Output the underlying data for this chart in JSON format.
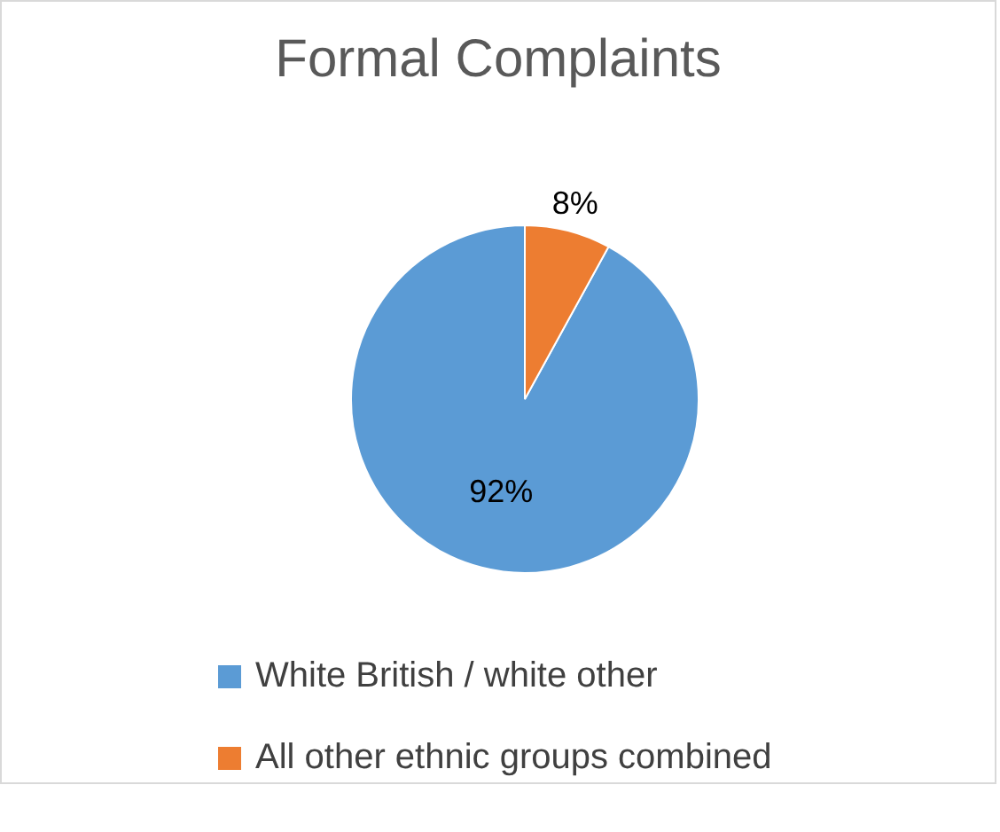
{
  "chart_data": {
    "type": "pie",
    "title": "Formal Complaints",
    "categories": [
      "White British / white other",
      "All other ethnic groups combined"
    ],
    "values": [
      92,
      8
    ],
    "colors": [
      "#5b9bd5",
      "#ed7d31"
    ],
    "value_labels": [
      "92%",
      "8%"
    ],
    "legend": "bottom"
  }
}
